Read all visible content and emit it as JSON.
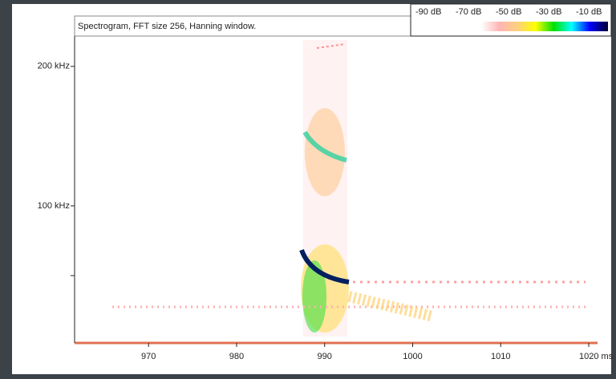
{
  "chart_data": {
    "type": "spectrogram",
    "title": "Spectrogram, FFT size 256, Hanning window.",
    "xlim": [
      961.6,
      1021
    ],
    "xticks": [
      970,
      980,
      990,
      1000,
      1010,
      {
        "value": 1020,
        "label": "1020 ms"
      }
    ],
    "ylim": [
      0,
      220
    ],
    "yticks": [
      {
        "value": 200,
        "label": "200 kHz"
      },
      {
        "value": 100,
        "label": "100 kHz"
      },
      {
        "value": 50,
        "label": null
      }
    ],
    "colorbar": {
      "ticks": [
        {
          "value": -90,
          "label": "-90 dB"
        },
        {
          "value": -70,
          "label": "-70 dB"
        },
        {
          "value": -50,
          "label": "-50 dB"
        },
        {
          "value": -30,
          "label": "-30 dB"
        },
        {
          "value": -10,
          "label": "-10 dB"
        }
      ],
      "colors": [
        "#ffffff",
        "#ffb4b4",
        "#ffd080",
        "#ffff00",
        "#00e000",
        "#00ffff",
        "#0000ff",
        "#000030"
      ]
    }
  }
}
